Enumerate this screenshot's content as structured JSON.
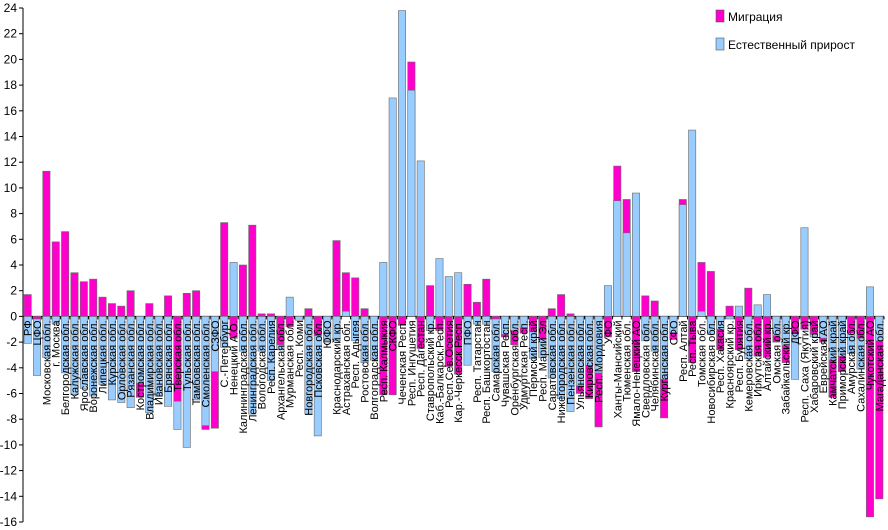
{
  "chart_data": {
    "type": "bar",
    "title": "",
    "xlabel": "",
    "ylabel": "",
    "ylim": [
      -16,
      24
    ],
    "yticks": [
      -16,
      -14,
      -12,
      -10,
      -8,
      -6,
      -4,
      -2,
      0,
      2,
      4,
      6,
      8,
      10,
      12,
      14,
      16,
      18,
      20,
      22,
      24
    ],
    "grid": false,
    "legend_position": "top-right",
    "categories": [
      "РФ",
      "ЦФО",
      "Московская обл.",
      "г. Москва",
      "Белгородская обл.",
      "Калужская обл.",
      "Ярославская обл.",
      "Воронежская обл.",
      "Липецкая обл.",
      "Курская обл.",
      "Орловская обл.",
      "Рязанская обл.",
      "Костромская обл.",
      "Владимирская обл.",
      "Ивановская обл.",
      "Брянская обл.",
      "Тверская обл.",
      "Тульская обл.",
      "Тамбовская обл.",
      "Смоленская обл.",
      "СЗФО",
      "С.-Петербург",
      "Ненецкий А.О.",
      "Калининградская обл.",
      "Ленинградская обл.",
      "Вологодская обл.",
      "Респ. Карелия",
      "Архангельская обл.",
      "Мурманская обл.",
      "Респ. Коми",
      "Новгородская обл.",
      "Псковская обл.",
      "ЮФО",
      "Краснодарский кр.",
      "Астраханская обл.",
      "Респ. Адыгея",
      "Ростовская обл.",
      "Волгоградская обл.",
      "Респ. Калмыкия",
      "СКФО",
      "Чеченская Респ.",
      "Респ. Ингушетия",
      "Респ. Дагестан",
      "Ставропольский кр.",
      "Каб.-Балкарск.Респ.",
      "Респ.Сев.Осетия",
      "Кар.-Черкесск.Респ.",
      "ПФО",
      "Респ. Татарстан",
      "Респ. Башкортостан",
      "Самарская обл.",
      "Чувашская Респ.",
      "Оренбургская обл.",
      "Удмуртская Респ.",
      "Пермский край",
      "Респ. Марий Эл",
      "Саратовская обл.",
      "Нижегородская обл.",
      "Пензенская обл.",
      "Ульяновская обл.",
      "Кировская обл.",
      "Респ. Мордовия",
      "УФО",
      "Ханты-Мансийский",
      "Тюменская обл.",
      "Ямало-Ненецкий АО",
      "Свердловская обл.",
      "Челябинская обл.",
      "Курганская обл.",
      "СФО",
      "Респ. Алтай",
      "Респ. Тыва",
      "Томская обл.",
      "Новосибирская обл.",
      "Респ. Хакасия",
      "Красноярский кр.",
      "Респ. Бурятия",
      "Кемеровская обл.",
      "Иркутская обл.",
      "Алтайский кр.",
      "Омская обл.",
      "Забайкальский кр.",
      "ДФО",
      "Респ. Саха (Якутия)",
      "Хабаровский край",
      "Еврейская АО",
      "Камчатский край",
      "Приморский край",
      "Амурская обл.",
      "Сахалинская обл.",
      "Чукотский АО",
      "Магаданская обл."
    ],
    "series": [
      {
        "name": "Миграция",
        "color": "#ff00cc",
        "values": [
          1.7,
          -0.2,
          11.3,
          5.8,
          6.6,
          3.4,
          2.7,
          2.9,
          1.5,
          1.0,
          0.8,
          2.0,
          -6.3,
          1.0,
          -6.2,
          1.6,
          -6.6,
          1.8,
          2.0,
          -8.8,
          -8.7,
          7.3,
          -1.7,
          4.0,
          7.1,
          0.2,
          0.2,
          -2.2,
          -0.8,
          -0.3,
          0.6,
          -1.5,
          -2.0,
          5.9,
          3.4,
          3.0,
          0.6,
          -3.4,
          -6.1,
          -6.1,
          -0.7,
          19.8,
          -2.5,
          2.4,
          -1.1,
          -3.9,
          -4.5,
          2.5,
          1.1,
          2.9,
          -0.2,
          -1.6,
          -2.2,
          -1.3,
          -1.2,
          -1.8,
          0.6,
          1.7,
          0.2,
          -6.0,
          -6.4,
          -8.6,
          -1.6,
          11.7,
          9.1,
          -4.3,
          1.6,
          1.2,
          -7.9,
          -1.8,
          9.1,
          -3.6,
          4.2,
          3.5,
          -2.6,
          0.8,
          -2.6,
          2.2,
          -3.1,
          -3.2,
          -2.0,
          -3.6,
          -1.3,
          -1.0,
          -1.4,
          -2.0,
          -6.3,
          -4.3,
          -1.3,
          -1.7,
          -15.6,
          -14.2
        ]
      },
      {
        "name": "Естественный прирост",
        "color": "#99ccff",
        "values": [
          -2.1,
          -4.6,
          -3.2,
          -0.6,
          -4.4,
          -6.1,
          -5.6,
          -6.2,
          -5.3,
          -6.5,
          -6.7,
          -7.1,
          -5.2,
          -7.5,
          -6.2,
          -7.0,
          -8.8,
          -10.2,
          -6.5,
          -8.5,
          -4.3,
          -2.4,
          4.2,
          -2.7,
          -7.6,
          -2.7,
          -5.0,
          -2.6,
          1.5,
          -0.3,
          -7.6,
          -9.3,
          -1.9,
          -1.9,
          0.4,
          -1.9,
          -3.6,
          -3.4,
          4.2,
          17.0,
          23.8,
          17.6,
          12.1,
          -1.1,
          4.5,
          3.1,
          3.4,
          -3.8,
          -0.6,
          -0.6,
          -4.3,
          -1.4,
          -1.1,
          -0.9,
          -3.3,
          -3.2,
          -4.8,
          -6.4,
          -7.4,
          -5.4,
          -3.8,
          -4.4,
          2.4,
          9.0,
          6.5,
          9.6,
          -1.9,
          -2.7,
          -4.9,
          -1.3,
          8.7,
          14.5,
          0.4,
          -1.4,
          -1.0,
          -0.2,
          0.8,
          -3.3,
          0.9,
          1.7,
          -1.5,
          -2.3,
          -4.9,
          6.9,
          -1.6,
          -1.7,
          -3.4,
          -3.1,
          -2.9,
          -4.1,
          2.3,
          -1.9
        ]
      }
    ]
  }
}
